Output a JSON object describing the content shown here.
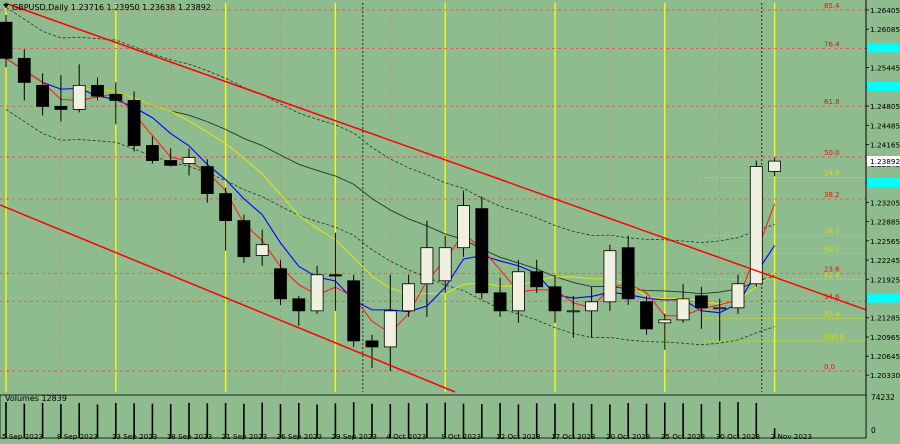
{
  "header": {
    "title": "GBPUSD,Daily  1.23716 1.23950 1.23638 1.23892",
    "volume_label": "Volumes 12839"
  },
  "colors": {
    "background": "#8fbc8f",
    "bull_candle": "#f0f0e0",
    "bear_candle": "#000000",
    "channel": "#ff0000",
    "fib_level": "#ff4040",
    "yellow_marker": "#ffff00",
    "price_tag": "#00ffff",
    "blue_ma": "#0000ff",
    "red_ma": "#ff2020",
    "yellow_ma": "#e6e600",
    "dark_ma": "#1e3a1e"
  },
  "chart_data": {
    "type": "candlestick",
    "symbol": "GBPUSD",
    "timeframe": "Daily",
    "last_bar": {
      "open": 1.23716,
      "high": 1.2395,
      "low": 1.23638,
      "close": 1.23892
    },
    "ylim": [
      1.2005,
      1.2652
    ],
    "y_ticks": [
      "1.26405",
      "1.26085",
      "1.25765",
      "1.25445",
      "1.25125",
      "1.24805",
      "1.24485",
      "1.24165",
      "1.23845",
      "1.23525",
      "1.23205",
      "1.22885",
      "1.22565",
      "1.22245",
      "1.21925",
      "1.21605",
      "1.21285",
      "1.20965",
      "1.20645",
      "1.20330"
    ],
    "x_ticks": [
      {
        "label": "5 Sep 2023",
        "idx": 0
      },
      {
        "label": "8 Sep 2023",
        "idx": 3
      },
      {
        "label": "13 Sep 2023",
        "idx": 6
      },
      {
        "label": "18 Sep 2023",
        "idx": 9
      },
      {
        "label": "21 Sep 2023",
        "idx": 12
      },
      {
        "label": "26 Sep 2023",
        "idx": 15
      },
      {
        "label": "29 Sep 2023",
        "idx": 18
      },
      {
        "label": "4 Oct 2023",
        "idx": 21
      },
      {
        "label": "9 Oct 2023",
        "idx": 24
      },
      {
        "label": "12 Oct 2023",
        "idx": 27
      },
      {
        "label": "17 Oct 2023",
        "idx": 30
      },
      {
        "label": "20 Oct 2023",
        "idx": 33
      },
      {
        "label": "25 Oct 2023",
        "idx": 36
      },
      {
        "label": "30 Oct 2023",
        "idx": 39
      },
      {
        "label": "2 Nov 2023",
        "idx": 42
      }
    ],
    "candles": [
      {
        "o": 1.262,
        "h": 1.2632,
        "l": 1.2545,
        "c": 1.256
      },
      {
        "o": 1.256,
        "h": 1.2575,
        "l": 1.249,
        "c": 1.252
      },
      {
        "o": 1.2515,
        "h": 1.2535,
        "l": 1.2465,
        "c": 1.248
      },
      {
        "o": 1.248,
        "h": 1.2532,
        "l": 1.2455,
        "c": 1.2475
      },
      {
        "o": 1.2475,
        "h": 1.255,
        "l": 1.247,
        "c": 1.2515
      },
      {
        "o": 1.2515,
        "h": 1.2528,
        "l": 1.249,
        "c": 1.2497
      },
      {
        "o": 1.25,
        "h": 1.252,
        "l": 1.245,
        "c": 1.249
      },
      {
        "o": 1.249,
        "h": 1.2505,
        "l": 1.2405,
        "c": 1.2415
      },
      {
        "o": 1.2415,
        "h": 1.243,
        "l": 1.2385,
        "c": 1.239
      },
      {
        "o": 1.239,
        "h": 1.241,
        "l": 1.238,
        "c": 1.2382
      },
      {
        "o": 1.2385,
        "h": 1.241,
        "l": 1.2365,
        "c": 1.2395
      },
      {
        "o": 1.238,
        "h": 1.2392,
        "l": 1.232,
        "c": 1.2335
      },
      {
        "o": 1.2335,
        "h": 1.2345,
        "l": 1.224,
        "c": 1.229
      },
      {
        "o": 1.229,
        "h": 1.23,
        "l": 1.222,
        "c": 1.223
      },
      {
        "o": 1.2232,
        "h": 1.2275,
        "l": 1.2215,
        "c": 1.225
      },
      {
        "o": 1.221,
        "h": 1.2225,
        "l": 1.215,
        "c": 1.216
      },
      {
        "o": 1.216,
        "h": 1.2165,
        "l": 1.2115,
        "c": 1.214
      },
      {
        "o": 1.214,
        "h": 1.2215,
        "l": 1.2135,
        "c": 1.22
      },
      {
        "o": 1.22,
        "h": 1.227,
        "l": 1.214,
        "c": 1.2198
      },
      {
        "o": 1.219,
        "h": 1.22,
        "l": 1.208,
        "c": 1.209
      },
      {
        "o": 1.209,
        "h": 1.21,
        "l": 1.2045,
        "c": 1.208
      },
      {
        "o": 1.208,
        "h": 1.22,
        "l": 1.204,
        "c": 1.214
      },
      {
        "o": 1.214,
        "h": 1.22,
        "l": 1.213,
        "c": 1.2185
      },
      {
        "o": 1.2185,
        "h": 1.229,
        "l": 1.213,
        "c": 1.2245
      },
      {
        "o": 1.219,
        "h": 1.2265,
        "l": 1.217,
        "c": 1.2245
      },
      {
        "o": 1.2245,
        "h": 1.234,
        "l": 1.223,
        "c": 1.2315
      },
      {
        "o": 1.231,
        "h": 1.233,
        "l": 1.216,
        "c": 1.217
      },
      {
        "o": 1.217,
        "h": 1.2195,
        "l": 1.213,
        "c": 1.214
      },
      {
        "o": 1.214,
        "h": 1.2225,
        "l": 1.212,
        "c": 1.2205
      },
      {
        "o": 1.2205,
        "h": 1.2225,
        "l": 1.217,
        "c": 1.218
      },
      {
        "o": 1.218,
        "h": 1.22,
        "l": 1.212,
        "c": 1.214
      },
      {
        "o": 1.214,
        "h": 1.2165,
        "l": 1.2095,
        "c": 1.214
      },
      {
        "o": 1.214,
        "h": 1.218,
        "l": 1.2095,
        "c": 1.2155
      },
      {
        "o": 1.2155,
        "h": 1.225,
        "l": 1.214,
        "c": 1.224
      },
      {
        "o": 1.2245,
        "h": 1.2265,
        "l": 1.215,
        "c": 1.216
      },
      {
        "o": 1.2155,
        "h": 1.2165,
        "l": 1.21,
        "c": 1.211
      },
      {
        "o": 1.212,
        "h": 1.2135,
        "l": 1.2075,
        "c": 1.2125
      },
      {
        "o": 1.2125,
        "h": 1.2185,
        "l": 1.212,
        "c": 1.216
      },
      {
        "o": 1.2165,
        "h": 1.218,
        "l": 1.211,
        "c": 1.2145
      },
      {
        "o": 1.2145,
        "h": 1.216,
        "l": 1.209,
        "c": 1.2145
      },
      {
        "o": 1.2145,
        "h": 1.22,
        "l": 1.2135,
        "c": 1.2185
      },
      {
        "o": 1.2185,
        "h": 1.239,
        "l": 1.218,
        "c": 1.238
      },
      {
        "o": 1.2372,
        "h": 1.2395,
        "l": 1.2364,
        "c": 1.2389
      }
    ],
    "fib_levels": [
      {
        "label": "85.4",
        "price": 1.26405
      },
      {
        "label": "76.4",
        "price": 1.25765
      },
      {
        "label": "61.8",
        "price": 1.24805
      },
      {
        "label": "50.0",
        "price": 1.2396
      },
      {
        "label": "38.2",
        "price": 1.2326
      },
      {
        "label": "23.6",
        "price": 1.22025
      },
      {
        "label": "14.6",
        "price": 1.2156
      },
      {
        "label": "0.0",
        "price": 1.204
      }
    ],
    "small_fib_levels": [
      {
        "label": "14.6",
        "price": 1.2362
      },
      {
        "label": "38.2",
        "price": 1.2265
      },
      {
        "label": "50.0",
        "price": 1.22355
      },
      {
        "label": "61.8",
        "price": 1.2192
      },
      {
        "label": "85.4",
        "price": 1.2127
      },
      {
        "label": "100.0",
        "price": 1.209
      }
    ],
    "price_tags": [
      {
        "price": 1.25765
      },
      {
        "price": 1.25125
      },
      {
        "price": 1.23525
      },
      {
        "price": 1.21605
      }
    ],
    "current_price": {
      "label": "1.23892",
      "price": 1.23892
    },
    "volume_axis_max": "74232",
    "volume_axis_min": "0",
    "volumes": [
      0.92,
      0.88,
      0.9,
      0.87,
      0.9,
      0.86,
      0.9,
      0.89,
      0.88,
      0.87,
      0.9,
      0.89,
      0.9,
      0.88,
      0.91,
      0.87,
      0.9,
      0.86,
      0.89,
      0.92,
      0.88,
      0.87,
      0.9,
      0.89,
      0.91,
      0.88,
      0.87,
      0.9,
      0.86,
      0.89,
      0.88,
      0.9,
      0.87,
      0.86,
      0.9,
      0.88,
      0.91,
      0.89,
      0.87,
      0.93,
      0.92,
      0.9,
      0.25
    ]
  }
}
